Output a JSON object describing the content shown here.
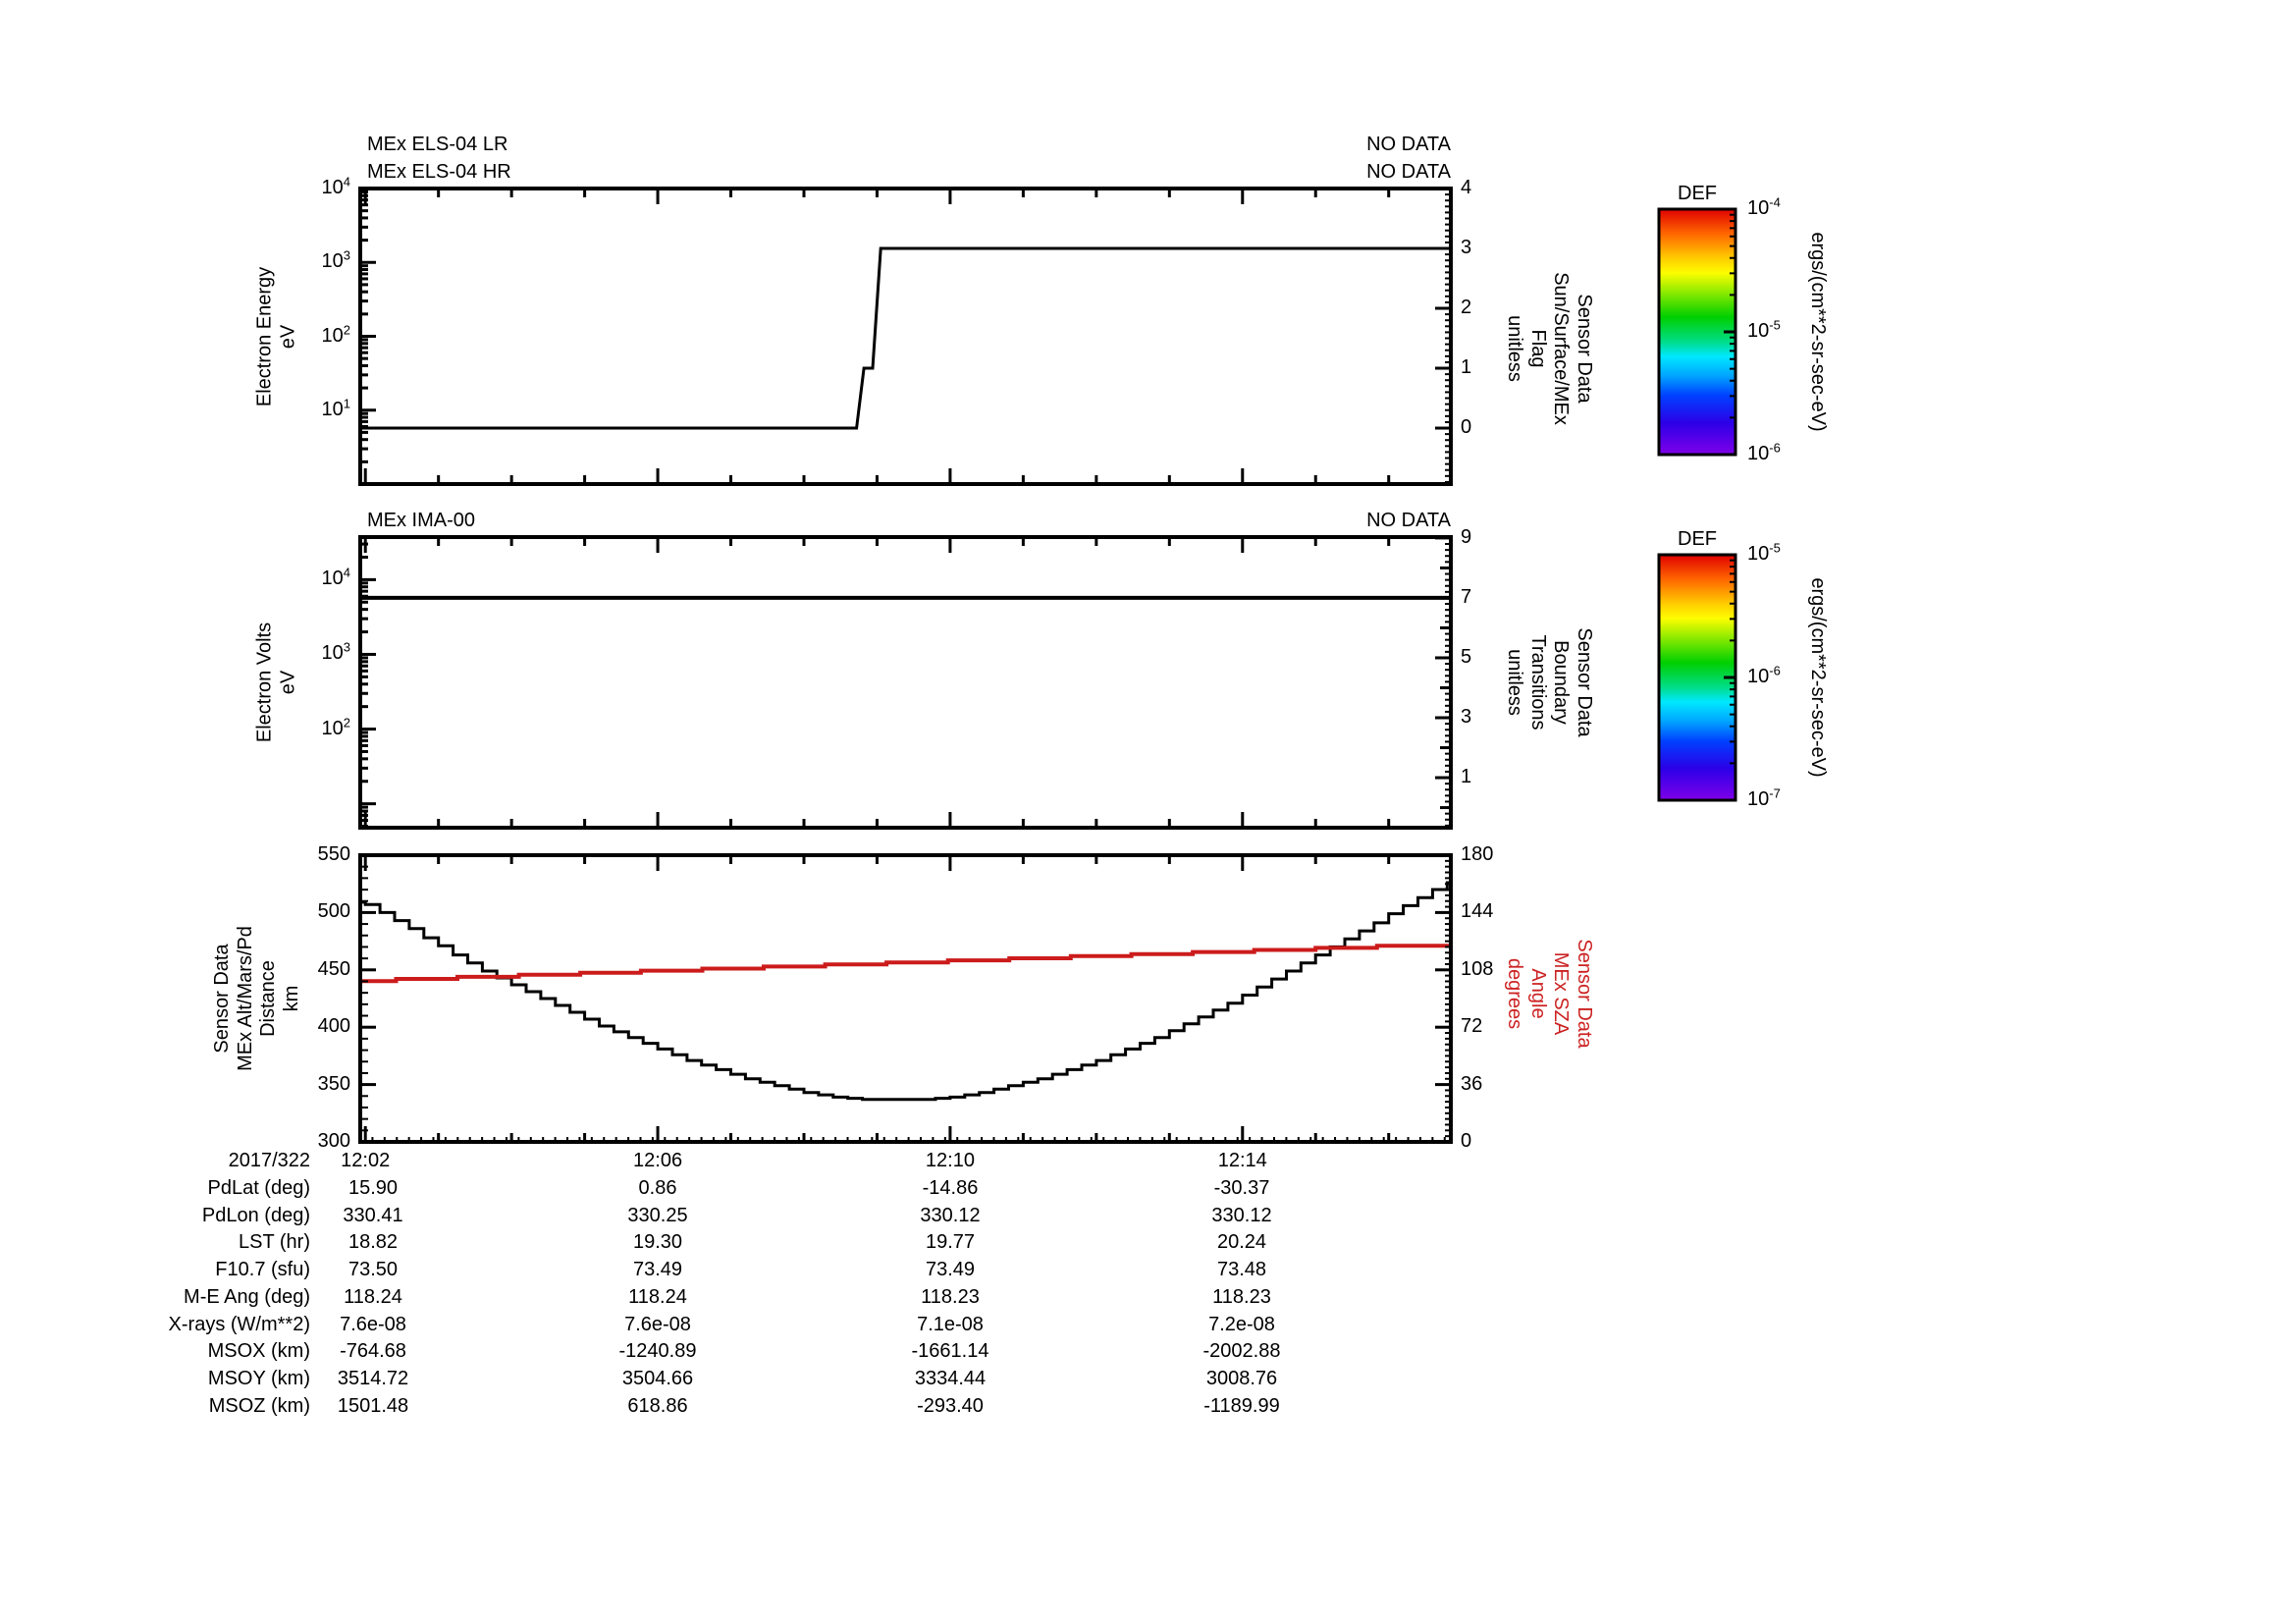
{
  "date_label": "2017/322",
  "x_axis": {
    "range_minutes": [
      1.93,
      16.85
    ],
    "labeled_ticks": [
      {
        "t": 2,
        "label": "12:02"
      },
      {
        "t": 6,
        "label": "12:06"
      },
      {
        "t": 10,
        "label": "12:10"
      },
      {
        "t": 14,
        "label": "12:14"
      }
    ],
    "minute_step": 1,
    "fine_step": 0.1667
  },
  "chart_data": [
    {
      "type": "line",
      "name": "els-panel",
      "titles": [
        "MEx ELS-04 LR",
        "MEx ELS-04 HR"
      ],
      "no_data": [
        "NO DATA",
        "NO DATA"
      ],
      "left_axis": {
        "label_lines": [
          "Electron Energy",
          "eV"
        ],
        "scale": "log",
        "range_exp": [
          0,
          4
        ],
        "labeled_exponents": [
          1,
          2,
          3,
          4
        ]
      },
      "right_axis": {
        "label_lines": [
          "Sensor Data",
          "Sun/Surface/MEx",
          "Flag",
          "unitless"
        ],
        "scale": "linear",
        "range": [
          -0.934,
          4
        ],
        "labeled_ticks": [
          0,
          1,
          2,
          3,
          4
        ],
        "minor_step": 0.1
      },
      "series": [
        {
          "name": "sun-surface-mex-flag",
          "axis": "right",
          "color": "#000000",
          "mode": "linear",
          "width": 3,
          "points": [
            [
              1.93,
              0
            ],
            [
              8.72,
              0
            ],
            [
              8.82,
              1
            ],
            [
              8.94,
              1
            ],
            [
              9.05,
              3
            ],
            [
              16.85,
              3
            ]
          ]
        }
      ]
    },
    {
      "type": "line",
      "name": "ima-panel",
      "titles": [
        "MEx IMA-00"
      ],
      "no_data": [
        "NO DATA"
      ],
      "left_axis": {
        "label_lines": [
          "Electron Volts",
          "eV"
        ],
        "scale": "log",
        "range_exp": [
          0.68,
          4.57
        ],
        "labeled_exponents": [
          2,
          3,
          4
        ]
      },
      "right_axis": {
        "label_lines": [
          "Sensor Data",
          "Boundary",
          "Transitions",
          "unitless"
        ],
        "scale": "linear",
        "range": [
          -0.67,
          9.03
        ],
        "labeled_ticks": [
          1,
          3,
          5,
          7,
          9
        ],
        "unlabeled_ticks": [
          0,
          2,
          4,
          6,
          8
        ],
        "minor_step": 0.2
      },
      "series": [
        {
          "name": "boundary-transitions",
          "axis": "right",
          "color": "#000000",
          "mode": "linear",
          "width": 4,
          "points": [
            [
              1.93,
              7
            ],
            [
              16.85,
              7
            ]
          ]
        }
      ]
    },
    {
      "type": "line",
      "name": "ephemeris-panel",
      "titles": [],
      "no_data": [],
      "left_axis": {
        "label_lines": [
          "Sensor Data",
          "MEx Alt/Mars/Pd",
          "Distance",
          "km"
        ],
        "scale": "linear",
        "range": [
          300,
          550
        ],
        "labeled_ticks": [
          300,
          350,
          400,
          450,
          500,
          550
        ],
        "minor_step": 10
      },
      "right_axis": {
        "label_lines": [
          "Sensor Data",
          "MEx SZA",
          "Angle",
          "degrees"
        ],
        "color": "#cc2222",
        "scale": "linear",
        "range": [
          0,
          180
        ],
        "labeled_ticks": [
          0,
          36,
          72,
          108,
          144,
          180
        ],
        "minor_step": 3.6
      },
      "series": [
        {
          "name": "mex-altitude-km",
          "axis": "left",
          "color": "#000000",
          "mode": "step",
          "width": 3,
          "points": [
            [
              1.93,
              509
            ],
            [
              2.0,
              507
            ],
            [
              2.2,
              500
            ],
            [
              2.4,
              493
            ],
            [
              2.6,
              486
            ],
            [
              2.8,
              478
            ],
            [
              3.0,
              471
            ],
            [
              3.2,
              463
            ],
            [
              3.4,
              456
            ],
            [
              3.6,
              449
            ],
            [
              3.8,
              443
            ],
            [
              4.0,
              437
            ],
            [
              4.2,
              431
            ],
            [
              4.4,
              425
            ],
            [
              4.6,
              419
            ],
            [
              4.8,
              413
            ],
            [
              5.0,
              407
            ],
            [
              5.2,
              401
            ],
            [
              5.4,
              396
            ],
            [
              5.6,
              391
            ],
            [
              5.8,
              386
            ],
            [
              6.0,
              381
            ],
            [
              6.2,
              376
            ],
            [
              6.4,
              371
            ],
            [
              6.6,
              367
            ],
            [
              6.8,
              363
            ],
            [
              7.0,
              359
            ],
            [
              7.2,
              355
            ],
            [
              7.4,
              352
            ],
            [
              7.6,
              349
            ],
            [
              7.8,
              346
            ],
            [
              8.0,
              343
            ],
            [
              8.2,
              341
            ],
            [
              8.4,
              339
            ],
            [
              8.6,
              338
            ],
            [
              8.8,
              337
            ],
            [
              9.0,
              337
            ],
            [
              9.2,
              337
            ],
            [
              9.4,
              337
            ],
            [
              9.6,
              337
            ],
            [
              9.8,
              338
            ],
            [
              10.0,
              339
            ],
            [
              10.2,
              341
            ],
            [
              10.4,
              343
            ],
            [
              10.6,
              346
            ],
            [
              10.8,
              349
            ],
            [
              11.0,
              352
            ],
            [
              11.2,
              355
            ],
            [
              11.4,
              359
            ],
            [
              11.6,
              363
            ],
            [
              11.8,
              367
            ],
            [
              12.0,
              371
            ],
            [
              12.2,
              376
            ],
            [
              12.4,
              381
            ],
            [
              12.6,
              386
            ],
            [
              12.8,
              391
            ],
            [
              13.0,
              397
            ],
            [
              13.2,
              403
            ],
            [
              13.4,
              409
            ],
            [
              13.6,
              415
            ],
            [
              13.8,
              421
            ],
            [
              14.0,
              428
            ],
            [
              14.2,
              435
            ],
            [
              14.4,
              442
            ],
            [
              14.6,
              449
            ],
            [
              14.8,
              456
            ],
            [
              15.0,
              463
            ],
            [
              15.2,
              470
            ],
            [
              15.4,
              477
            ],
            [
              15.6,
              484
            ],
            [
              15.8,
              491
            ],
            [
              16.0,
              499
            ],
            [
              16.2,
              506
            ],
            [
              16.4,
              513
            ],
            [
              16.6,
              520
            ],
            [
              16.8,
              526
            ]
          ]
        },
        {
          "name": "mex-sza-degrees",
          "axis": "right",
          "color": "#cc1b1b",
          "mode": "step",
          "width": 4,
          "points": [
            [
              1.93,
              101.0
            ],
            [
              2.42,
              102.3
            ],
            [
              3.26,
              103.6
            ],
            [
              4.1,
              104.9
            ],
            [
              4.94,
              106.2
            ],
            [
              5.77,
              107.5
            ],
            [
              6.61,
              108.8
            ],
            [
              7.45,
              110.1
            ],
            [
              8.29,
              111.4
            ],
            [
              9.13,
              112.7
            ],
            [
              9.97,
              114.0
            ],
            [
              10.81,
              115.3
            ],
            [
              11.65,
              116.6
            ],
            [
              12.48,
              117.9
            ],
            [
              13.32,
              119.2
            ],
            [
              14.16,
              120.5
            ],
            [
              15.0,
              121.8
            ],
            [
              15.84,
              123.1
            ]
          ]
        }
      ]
    }
  ],
  "colorbars": [
    {
      "title": "DEF",
      "unit": "ergs/(cm**2-sr-sec-eV)",
      "labels": [
        {
          "exp": "-4",
          "frac": 0
        },
        {
          "exp": "-5",
          "frac": 0.5
        },
        {
          "exp": "-6",
          "frac": 1
        }
      ]
    },
    {
      "title": "DEF",
      "unit": "ergs/(cm**2-sr-sec-eV)",
      "labels": [
        {
          "exp": "-5",
          "frac": 0
        },
        {
          "exp": "-6",
          "frac": 0.5
        },
        {
          "exp": "-7",
          "frac": 1
        }
      ]
    }
  ],
  "rainbow_gradient": [
    [
      "#e00000",
      0
    ],
    [
      "#ff6600",
      0.1
    ],
    [
      "#ffcc00",
      0.2
    ],
    [
      "#fdfd00",
      0.26
    ],
    [
      "#8bea00",
      0.34
    ],
    [
      "#00cf00",
      0.44
    ],
    [
      "#00dd88",
      0.54
    ],
    [
      "#00e8ff",
      0.6
    ],
    [
      "#00a4ff",
      0.68
    ],
    [
      "#0040ff",
      0.76
    ],
    [
      "#2b00e8",
      0.87
    ],
    [
      "#8000e8",
      1
    ]
  ],
  "table": {
    "time_row": {
      "label": "2017/322",
      "values": [
        "12:02",
        "12:06",
        "12:10",
        "12:14"
      ]
    },
    "row_labels": [
      "PdLat (deg)",
      "PdLon (deg)",
      "LST (hr)",
      "F10.7 (sfu)",
      "M-E Ang (deg)",
      "X-rays (W/m**2)",
      "MSOX (km)",
      "MSOY (km)",
      "MSOZ (km)"
    ],
    "rows": [
      [
        "15.90",
        "0.86",
        "-14.86",
        "-30.37"
      ],
      [
        "330.41",
        "330.25",
        "330.12",
        "330.12"
      ],
      [
        "18.82",
        "19.30",
        "19.77",
        "20.24"
      ],
      [
        "73.50",
        "73.49",
        "73.49",
        "73.48"
      ],
      [
        "118.24",
        "118.24",
        "118.23",
        "118.23"
      ],
      [
        "7.6e-08",
        "7.6e-08",
        "7.1e-08",
        "7.2e-08"
      ],
      [
        "-764.68",
        "-1240.89",
        "-1661.14",
        "-2002.88"
      ],
      [
        "3514.72",
        "3504.66",
        "3334.44",
        "3008.76"
      ],
      [
        "1501.48",
        "618.86",
        "-293.40",
        "-1189.99"
      ]
    ]
  }
}
